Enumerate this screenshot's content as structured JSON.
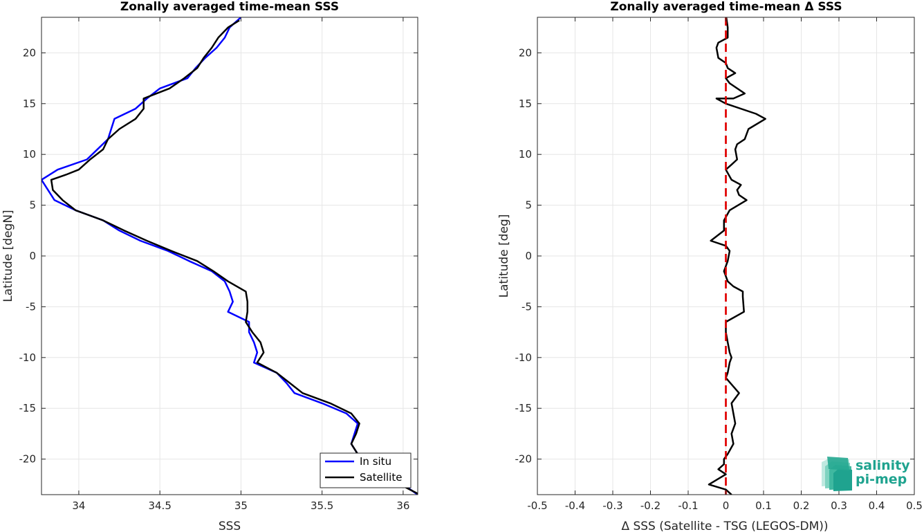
{
  "chart_data": [
    {
      "type": "line",
      "title": "Zonally averaged time-mean SSS",
      "xlabel": "SSS",
      "ylabel": "Latitude [degN]",
      "xlim": [
        33.77,
        36.09
      ],
      "ylim": [
        -23.5,
        23.5
      ],
      "xticks": [
        "34",
        "34.5",
        "35",
        "35.5",
        "36"
      ],
      "yticks": [
        "20",
        "15",
        "10",
        "5",
        "0",
        "-5",
        "-10",
        "-15",
        "-20"
      ],
      "grid": true,
      "legend": {
        "location": "bottom-right",
        "entries": [
          "In situ",
          "Satellite"
        ]
      },
      "series": [
        {
          "name": "In situ",
          "color": "#0000ff",
          "points": [
            [
              35.0,
              23.5
            ],
            [
              34.93,
              22.5
            ],
            [
              34.9,
              21.5
            ],
            [
              34.85,
              20.5
            ],
            [
              34.78,
              19.5
            ],
            [
              34.72,
              18.5
            ],
            [
              34.67,
              17.5
            ],
            [
              34.5,
              16.5
            ],
            [
              34.42,
              15.5
            ],
            [
              34.35,
              14.5
            ],
            [
              34.22,
              13.5
            ],
            [
              34.18,
              11.5
            ],
            [
              34.05,
              9.5
            ],
            [
              33.87,
              8.5
            ],
            [
              33.77,
              7.5
            ],
            [
              33.85,
              5.5
            ],
            [
              33.98,
              4.5
            ],
            [
              34.15,
              3.5
            ],
            [
              34.25,
              2.5
            ],
            [
              34.38,
              1.5
            ],
            [
              34.55,
              0.5
            ],
            [
              34.68,
              -0.5
            ],
            [
              34.82,
              -1.5
            ],
            [
              34.9,
              -2.5
            ],
            [
              34.93,
              -3.5
            ],
            [
              34.95,
              -4.5
            ],
            [
              34.92,
              -5.5
            ],
            [
              35.05,
              -6.5
            ],
            [
              35.05,
              -7.5
            ],
            [
              35.08,
              -8.5
            ],
            [
              35.1,
              -9.5
            ],
            [
              35.08,
              -10.5
            ],
            [
              35.22,
              -11.5
            ],
            [
              35.28,
              -12.5
            ],
            [
              35.33,
              -13.5
            ],
            [
              35.5,
              -14.5
            ],
            [
              35.65,
              -15.5
            ],
            [
              35.72,
              -16.5
            ],
            [
              35.7,
              -17.5
            ],
            [
              35.68,
              -18.5
            ],
            [
              35.72,
              -19.5
            ],
            [
              35.82,
              -20.5
            ],
            [
              35.9,
              -21.5
            ],
            [
              36.0,
              -22.5
            ],
            [
              36.09,
              -23.5
            ]
          ]
        },
        {
          "name": "Satellite",
          "color": "#000000",
          "points": [
            [
              34.99,
              23.2
            ],
            [
              34.92,
              22.5
            ],
            [
              34.86,
              21.5
            ],
            [
              34.82,
              20.5
            ],
            [
              34.77,
              19.5
            ],
            [
              34.73,
              18.5
            ],
            [
              34.65,
              17.5
            ],
            [
              34.56,
              16.5
            ],
            [
              34.48,
              16.0
            ],
            [
              34.4,
              15.5
            ],
            [
              34.4,
              14.5
            ],
            [
              34.35,
              13.5
            ],
            [
              34.25,
              12.5
            ],
            [
              34.18,
              11.5
            ],
            [
              34.15,
              10.5
            ],
            [
              34.07,
              9.5
            ],
            [
              34.0,
              8.5
            ],
            [
              33.92,
              8.0
            ],
            [
              33.83,
              7.5
            ],
            [
              33.84,
              6.5
            ],
            [
              33.9,
              5.5
            ],
            [
              33.98,
              4.5
            ],
            [
              34.15,
              3.5
            ],
            [
              34.28,
              2.5
            ],
            [
              34.42,
              1.5
            ],
            [
              34.57,
              0.5
            ],
            [
              34.73,
              -0.5
            ],
            [
              34.83,
              -1.5
            ],
            [
              34.92,
              -2.5
            ],
            [
              35.03,
              -3.5
            ],
            [
              35.04,
              -4.5
            ],
            [
              35.04,
              -5.5
            ],
            [
              35.03,
              -6.5
            ],
            [
              35.07,
              -7.5
            ],
            [
              35.12,
              -8.5
            ],
            [
              35.14,
              -9.5
            ],
            [
              35.1,
              -10.5
            ],
            [
              35.22,
              -11.5
            ],
            [
              35.3,
              -12.5
            ],
            [
              35.38,
              -13.5
            ],
            [
              35.55,
              -14.5
            ],
            [
              35.68,
              -15.5
            ],
            [
              35.73,
              -16.5
            ],
            [
              35.71,
              -17.5
            ],
            [
              35.68,
              -18.5
            ],
            [
              35.72,
              -19.5
            ],
            [
              35.82,
              -20.5
            ],
            [
              35.9,
              -21.5
            ],
            [
              35.98,
              -22.5
            ],
            [
              36.09,
              -23.4
            ]
          ]
        }
      ]
    },
    {
      "type": "line",
      "title": "Zonally averaged time-mean Δ SSS",
      "xlabel": "Δ SSS (Satellite - TSG (LEGOS-DM))",
      "ylabel": "Latitude [deg]",
      "xlim": [
        -0.5,
        0.5
      ],
      "ylim": [
        -23.5,
        23.5
      ],
      "xticks": [
        "-0.5",
        "-0.4",
        "-0.3",
        "-0.2",
        "-0.1",
        "0",
        "0.1",
        "0.2",
        "0.3",
        "0.4",
        "0.5"
      ],
      "yticks": [
        "20",
        "15",
        "10",
        "5",
        "0",
        "-5",
        "-10",
        "-15",
        "-20"
      ],
      "grid": true,
      "series": [
        {
          "color": "#000000",
          "points": [
            [
              0.0,
              23.8
            ],
            [
              0.005,
              22.5
            ],
            [
              0.005,
              21.5
            ],
            [
              -0.02,
              21.0
            ],
            [
              -0.025,
              20.5
            ],
            [
              -0.02,
              19.5
            ],
            [
              0.0,
              19.0
            ],
            [
              0.005,
              18.5
            ],
            [
              0.025,
              18.0
            ],
            [
              0.0,
              17.5
            ],
            [
              0.01,
              17.0
            ],
            [
              0.05,
              16.0
            ],
            [
              0.02,
              15.5
            ],
            [
              -0.025,
              15.5
            ],
            [
              0.0,
              15.0
            ],
            [
              0.08,
              14.0
            ],
            [
              0.105,
              13.5
            ],
            [
              0.06,
              12.5
            ],
            [
              0.05,
              11.5
            ],
            [
              0.03,
              11.0
            ],
            [
              0.025,
              10.5
            ],
            [
              0.03,
              9.5
            ],
            [
              0.015,
              9.0
            ],
            [
              0.0,
              8.5
            ],
            [
              0.015,
              7.5
            ],
            [
              0.04,
              7.0
            ],
            [
              0.03,
              6.5
            ],
            [
              0.035,
              6.0
            ],
            [
              0.055,
              5.5
            ],
            [
              0.01,
              4.5
            ],
            [
              -0.005,
              3.5
            ],
            [
              -0.005,
              2.5
            ],
            [
              -0.04,
              1.5
            ],
            [
              0.0,
              1.0
            ],
            [
              0.01,
              0.5
            ],
            [
              0.005,
              -0.5
            ],
            [
              0.0,
              -1.0
            ],
            [
              -0.005,
              -1.5
            ],
            [
              0.005,
              -2.5
            ],
            [
              0.02,
              -3.0
            ],
            [
              0.045,
              -3.5
            ],
            [
              0.045,
              -4.0
            ],
            [
              0.048,
              -5.5
            ],
            [
              0.0,
              -6.5
            ],
            [
              0.0,
              -7.5
            ],
            [
              0.005,
              -8.5
            ],
            [
              0.01,
              -9.5
            ],
            [
              0.015,
              -10.0
            ],
            [
              0.01,
              -10.5
            ],
            [
              0.005,
              -11.5
            ],
            [
              0.0,
              -12.0
            ],
            [
              0.035,
              -13.5
            ],
            [
              0.015,
              -14.5
            ],
            [
              0.02,
              -15.5
            ],
            [
              0.025,
              -16.5
            ],
            [
              0.015,
              -17.5
            ],
            [
              0.02,
              -18.5
            ],
            [
              0.005,
              -19.5
            ],
            [
              -0.005,
              -20.0
            ],
            [
              -0.005,
              -20.5
            ],
            [
              -0.02,
              -21.0
            ],
            [
              0.0,
              -21.5
            ],
            [
              -0.045,
              -22.5
            ],
            [
              0.0,
              -23.0
            ],
            [
              0.015,
              -23.5
            ]
          ]
        }
      ],
      "reference_line": {
        "x": 0,
        "color": "#e00000",
        "style": "dashed"
      }
    }
  ],
  "logo": {
    "line1": "salinity",
    "line2": "pi-mep"
  }
}
